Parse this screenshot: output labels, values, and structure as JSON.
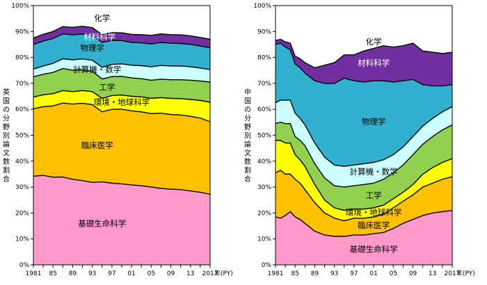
{
  "chart_data": [
    {
      "type": "area",
      "stacked": true,
      "ylabel": "英国の分野別論文数割合",
      "x_unit": "年(PY)",
      "ylim": [
        0,
        100
      ],
      "y_ticks": [
        "0%",
        "10%",
        "20%",
        "30%",
        "40%",
        "50%",
        "60%",
        "70%",
        "80%",
        "90%",
        "100%"
      ],
      "x_ticks": [
        "1981",
        "85",
        "89",
        "93",
        "97",
        "01",
        "05",
        "09",
        "13",
        "2017"
      ],
      "x": [
        1981,
        1983,
        1985,
        1987,
        1989,
        1991,
        1993,
        1995,
        1997,
        1999,
        2001,
        2003,
        2005,
        2007,
        2009,
        2011,
        2013,
        2015,
        2017
      ],
      "series": [
        {
          "name": "基礎生命科学",
          "color": "#ff99cc",
          "values": [
            34.2,
            34.5,
            33.8,
            33.9,
            33.0,
            32.5,
            31.8,
            32.0,
            31.5,
            31.2,
            30.8,
            30.5,
            30.0,
            29.5,
            29.2,
            29.0,
            28.5,
            28.0,
            27.2
          ]
        },
        {
          "name": "臨床医学",
          "color": "#ffc000",
          "values": [
            26.0,
            26.5,
            27.5,
            28.5,
            29.0,
            29.8,
            30.0,
            27.0,
            28.5,
            28.8,
            28.6,
            28.5,
            28.3,
            29.0,
            28.8,
            28.8,
            28.8,
            28.6,
            28.0
          ]
        },
        {
          "name": "環境・地球科学",
          "color": "#ffff00",
          "values": [
            4.5,
            4.6,
            4.7,
            4.8,
            4.8,
            4.9,
            5.0,
            5.2,
            5.3,
            5.5,
            5.6,
            5.8,
            5.9,
            6.0,
            6.2,
            6.3,
            6.5,
            6.8,
            7.5
          ]
        },
        {
          "name": "工学",
          "color": "#92d050",
          "values": [
            7.8,
            7.9,
            8.2,
            8.5,
            8.3,
            8.0,
            7.8,
            7.5,
            7.3,
            7.2,
            7.1,
            7.0,
            7.0,
            7.1,
            7.2,
            7.3,
            7.4,
            7.5,
            7.8
          ]
        },
        {
          "name": "計算機・数学",
          "color": "#ccffff",
          "values": [
            3.0,
            3.2,
            3.5,
            3.8,
            4.0,
            4.2,
            4.3,
            4.5,
            4.7,
            4.8,
            4.9,
            5.0,
            5.2,
            5.3,
            5.3,
            5.3,
            5.2,
            5.0,
            4.8
          ]
        },
        {
          "name": "物理学",
          "color": "#31b0cf",
          "values": [
            9.5,
            9.6,
            9.6,
            9.6,
            9.6,
            9.6,
            9.6,
            9.6,
            9.3,
            9.0,
            8.8,
            8.8,
            8.8,
            8.9,
            8.8,
            8.7,
            8.6,
            8.5,
            8.4
          ]
        },
        {
          "name": "材料科学",
          "color": "#7030a0",
          "values": [
            2.5,
            2.6,
            2.7,
            2.8,
            2.9,
            3.0,
            3.0,
            3.0,
            3.0,
            3.0,
            3.1,
            3.2,
            3.3,
            3.3,
            3.3,
            3.3,
            3.3,
            3.3,
            3.3
          ]
        },
        {
          "name": "化学",
          "color": "#ffffff",
          "values": [
            12.5,
            11.1,
            10.0,
            8.1,
            8.4,
            8.0,
            8.5,
            11.2,
            10.4,
            10.5,
            11.1,
            11.2,
            11.5,
            10.9,
            11.2,
            11.3,
            11.7,
            12.3,
            13.0
          ]
        }
      ]
    },
    {
      "type": "area",
      "stacked": true,
      "ylabel": "中国の分野別論文数割合",
      "x_unit": "年(PY)",
      "ylim": [
        0,
        100
      ],
      "y_ticks": [
        "0%",
        "10%",
        "20%",
        "30%",
        "40%",
        "50%",
        "60%",
        "70%",
        "80%",
        "90%",
        "100%"
      ],
      "x_ticks": [
        "1981",
        "85",
        "89",
        "93",
        "97",
        "01",
        "05",
        "09",
        "13",
        "2017"
      ],
      "x": [
        1981,
        1982,
        1983,
        1984,
        1985,
        1986,
        1987,
        1989,
        1991,
        1993,
        1995,
        1997,
        1999,
        2001,
        2003,
        2005,
        2007,
        2009,
        2011,
        2013,
        2015,
        2017
      ],
      "series": [
        {
          "name": "基礎生命科学",
          "color": "#ff99cc",
          "values": [
            18.5,
            18.0,
            19.0,
            20.5,
            18.5,
            17.5,
            16.0,
            13.0,
            11.5,
            11.0,
            11.0,
            11.5,
            11.5,
            12.0,
            12.5,
            14.0,
            16.0,
            17.5,
            19.0,
            20.0,
            20.5,
            21.0
          ]
        },
        {
          "name": "臨床医学",
          "color": "#ffc000",
          "values": [
            17.0,
            18.5,
            16.0,
            14.5,
            14.5,
            14.0,
            13.0,
            11.0,
            8.5,
            7.0,
            6.0,
            6.5,
            6.5,
            6.5,
            7.0,
            8.0,
            8.5,
            9.5,
            11.0,
            11.5,
            12.5,
            13.0
          ]
        },
        {
          "name": "環境・地球科学",
          "color": "#ffff00",
          "values": [
            12.5,
            11.5,
            12.0,
            12.0,
            9.5,
            9.0,
            9.0,
            7.0,
            5.0,
            4.0,
            4.0,
            3.5,
            3.5,
            3.5,
            3.5,
            3.5,
            3.5,
            4.0,
            5.0,
            6.0,
            6.5,
            7.0
          ]
        },
        {
          "name": "工学",
          "color": "#92d050",
          "values": [
            6.5,
            7.0,
            7.5,
            7.5,
            7.0,
            7.5,
            8.0,
            8.0,
            8.5,
            8.5,
            9.0,
            9.0,
            9.5,
            9.5,
            10.0,
            10.0,
            10.5,
            11.5,
            11.5,
            12.0,
            12.5,
            13.0
          ]
        },
        {
          "name": "計算機・数学",
          "color": "#ccffff",
          "values": [
            8.0,
            8.5,
            9.0,
            9.0,
            9.0,
            8.5,
            8.0,
            8.0,
            8.0,
            8.0,
            8.0,
            8.0,
            8.0,
            8.0,
            7.5,
            7.0,
            7.0,
            7.0,
            7.0,
            7.0,
            7.0,
            7.0
          ]
        },
        {
          "name": "物理学",
          "color": "#31b0cf",
          "values": [
            22.5,
            22.0,
            20.5,
            19.5,
            19.0,
            19.5,
            20.0,
            24.0,
            28.5,
            31.5,
            34.0,
            32.5,
            31.5,
            31.5,
            30.5,
            28.0,
            25.5,
            22.0,
            16.0,
            12.5,
            10.0,
            8.5
          ]
        },
        {
          "name": "材料科学",
          "color": "#7030a0",
          "values": [
            1.5,
            1.5,
            2.0,
            2.5,
            3.0,
            3.5,
            4.0,
            5.0,
            7.0,
            8.0,
            9.0,
            10.0,
            12.0,
            12.5,
            13.5,
            13.5,
            13.5,
            14.0,
            13.0,
            13.0,
            12.5,
            12.5
          ]
        },
        {
          "name": "化学",
          "color": "#ffffff",
          "values": [
            13.5,
            13.0,
            14.0,
            14.5,
            19.5,
            20.5,
            22.0,
            24.0,
            22.5,
            22.0,
            19.0,
            19.0,
            17.5,
            16.5,
            15.5,
            16.0,
            15.5,
            14.5,
            17.5,
            18.0,
            18.5,
            18.0
          ]
        }
      ]
    }
  ],
  "labels": {
    "left": {
      "基礎生命科学": "基礎生命科学",
      "臨床医学": "臨床医学",
      "環境・地球科学": "環境・地球科学",
      "工学": "工学",
      "計算機・数学": "計算機・数学",
      "物理学": "物理学",
      "材料科学": "材料科学",
      "化学": "化学"
    },
    "right": {
      "基礎生命科学": "基礎生命科学",
      "臨床医学": "臨床医学",
      "環境・地球科学": "環境・地球科学",
      "工学": "工学",
      "計算機・数学": "計算機・数学",
      "物理学": "物理学",
      "材料科学": "材料科学",
      "化学": "化学"
    }
  }
}
